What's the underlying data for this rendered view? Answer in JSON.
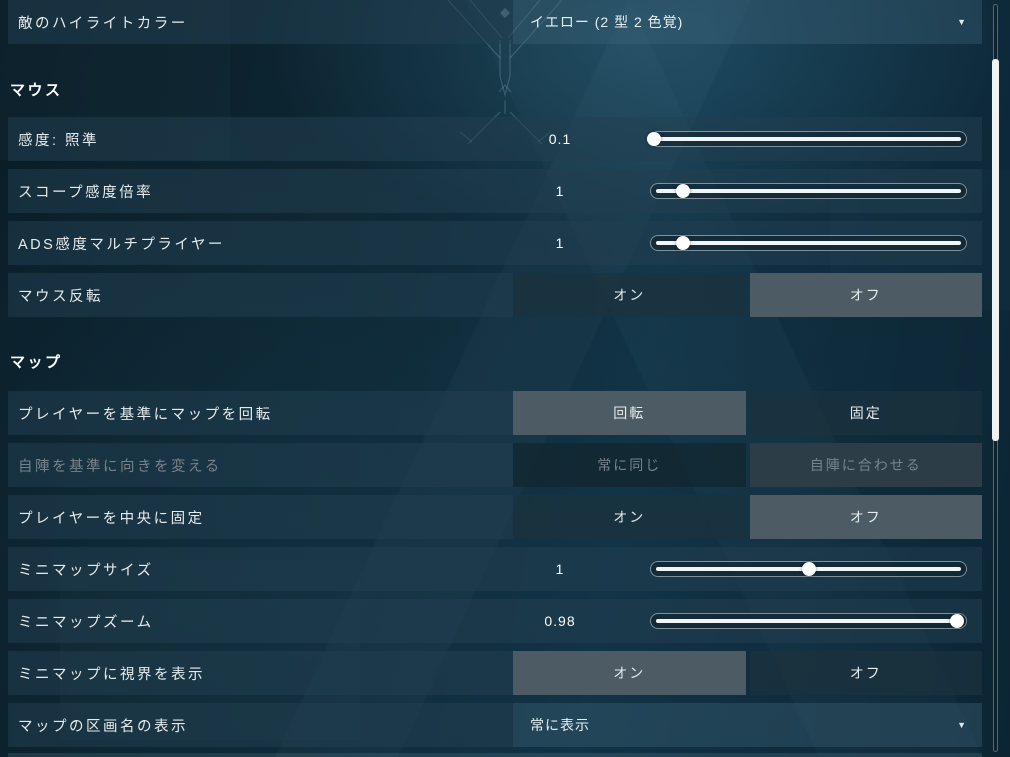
{
  "colors": {
    "row_bg": "#224050",
    "button_selected_bg": "#4d5b64",
    "button_unselected_bg": "#1b323e",
    "disabled_text": "#76838c",
    "label_text": "#e5ecee",
    "slider_fill": "#f2f5f6",
    "scroll_thumb": "#eef2f3"
  },
  "icons": {
    "dropdown_arrow": "▼"
  },
  "top_row": {
    "label": "敵のハイライトカラー",
    "value": "イエロー (2 型 2 色覚)"
  },
  "mouse_section": {
    "title": "マウス",
    "rows": [
      {
        "label": "感度: 照準",
        "type": "slider",
        "value": "0.1",
        "percent": 1
      },
      {
        "label": "スコープ感度倍率",
        "type": "slider",
        "value": "1",
        "percent": 10
      },
      {
        "label": "ADS感度マルチプライヤー",
        "type": "slider",
        "value": "1",
        "percent": 10
      },
      {
        "label": "マウス反転",
        "type": "toggle",
        "options": [
          "オン",
          "オフ"
        ],
        "selected": "オフ"
      }
    ]
  },
  "map_section": {
    "title": "マップ",
    "rows": [
      {
        "label": "プレイヤーを基準にマップを回転",
        "type": "toggle",
        "options": [
          "回転",
          "固定"
        ],
        "selected": "回転"
      },
      {
        "label": "自陣を基準に向きを変える",
        "type": "toggle",
        "options": [
          "常に同じ",
          "自陣に合わせる"
        ],
        "selected": "自陣に合わせる",
        "disabled": true
      },
      {
        "label": "プレイヤーを中央に固定",
        "type": "toggle",
        "options": [
          "オン",
          "オフ"
        ],
        "selected": "オフ"
      },
      {
        "label": "ミニマップサイズ",
        "type": "slider",
        "value": "1",
        "percent": 50
      },
      {
        "label": "ミニマップズーム",
        "type": "slider",
        "value": "0.98",
        "percent": 97
      },
      {
        "label": "ミニマップに視界を表示",
        "type": "toggle",
        "options": [
          "オン",
          "オフ"
        ],
        "selected": "オン"
      },
      {
        "label": "マップの区画名の表示",
        "type": "dropdown",
        "value": "常に表示"
      }
    ]
  }
}
